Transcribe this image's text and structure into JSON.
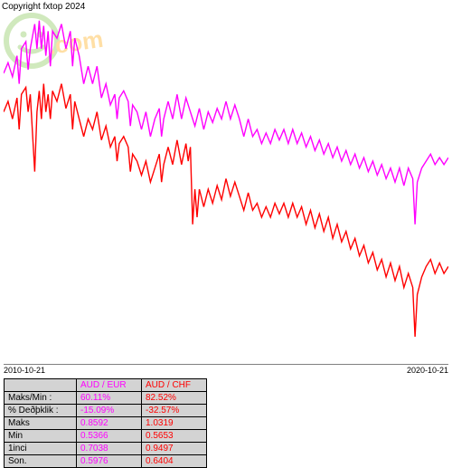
{
  "copyright": "Copyright fxtop 2024",
  "watermark": {
    "face_color": "#7bc043",
    "text": "fxtop.com",
    "text_color": "#ffa500"
  },
  "chart": {
    "type": "line",
    "background": "#ffffff",
    "xlim": [
      "2010-10-21",
      "2020-10-21"
    ],
    "series": [
      {
        "name": "AUD / EUR",
        "color": "#ff00ff",
        "width": 1.4,
        "points": [
          [
            0,
            0.17
          ],
          [
            0.01,
            0.14
          ],
          [
            0.02,
            0.18
          ],
          [
            0.03,
            0.12
          ],
          [
            0.035,
            0.2
          ],
          [
            0.04,
            0.1
          ],
          [
            0.05,
            0.08
          ],
          [
            0.055,
            0.16
          ],
          [
            0.06,
            0.1
          ],
          [
            0.07,
            0.03
          ],
          [
            0.075,
            0.1
          ],
          [
            0.08,
            0.02
          ],
          [
            0.085,
            0.1
          ],
          [
            0.09,
            0.035
          ],
          [
            0.095,
            0.12
          ],
          [
            0.1,
            0.05
          ],
          [
            0.105,
            0.15
          ],
          [
            0.11,
            0.05
          ],
          [
            0.12,
            0.07
          ],
          [
            0.13,
            0.03
          ],
          [
            0.14,
            0.1
          ],
          [
            0.15,
            0.05
          ],
          [
            0.155,
            0.15
          ],
          [
            0.16,
            0.07
          ],
          [
            0.17,
            0.12
          ],
          [
            0.18,
            0.2
          ],
          [
            0.19,
            0.15
          ],
          [
            0.2,
            0.2
          ],
          [
            0.21,
            0.15
          ],
          [
            0.22,
            0.24
          ],
          [
            0.23,
            0.2
          ],
          [
            0.24,
            0.26
          ],
          [
            0.25,
            0.23
          ],
          [
            0.255,
            0.3
          ],
          [
            0.26,
            0.24
          ],
          [
            0.27,
            0.22
          ],
          [
            0.28,
            0.25
          ],
          [
            0.285,
            0.32
          ],
          [
            0.29,
            0.26
          ],
          [
            0.3,
            0.28
          ],
          [
            0.31,
            0.33
          ],
          [
            0.32,
            0.28
          ],
          [
            0.33,
            0.35
          ],
          [
            0.34,
            0.3
          ],
          [
            0.35,
            0.27
          ],
          [
            0.355,
            0.35
          ],
          [
            0.36,
            0.3
          ],
          [
            0.37,
            0.25
          ],
          [
            0.38,
            0.3
          ],
          [
            0.39,
            0.23
          ],
          [
            0.4,
            0.3
          ],
          [
            0.41,
            0.24
          ],
          [
            0.42,
            0.28
          ],
          [
            0.43,
            0.32
          ],
          [
            0.44,
            0.27
          ],
          [
            0.45,
            0.33
          ],
          [
            0.46,
            0.28
          ],
          [
            0.47,
            0.31
          ],
          [
            0.48,
            0.27
          ],
          [
            0.49,
            0.3
          ],
          [
            0.5,
            0.25
          ],
          [
            0.51,
            0.3
          ],
          [
            0.52,
            0.26
          ],
          [
            0.53,
            0.3
          ],
          [
            0.54,
            0.35
          ],
          [
            0.55,
            0.3
          ],
          [
            0.56,
            0.35
          ],
          [
            0.57,
            0.33
          ],
          [
            0.58,
            0.37
          ],
          [
            0.59,
            0.34
          ],
          [
            0.6,
            0.37
          ],
          [
            0.61,
            0.33
          ],
          [
            0.62,
            0.36
          ],
          [
            0.63,
            0.33
          ],
          [
            0.64,
            0.37
          ],
          [
            0.65,
            0.33
          ],
          [
            0.66,
            0.37
          ],
          [
            0.67,
            0.34
          ],
          [
            0.68,
            0.38
          ],
          [
            0.69,
            0.35
          ],
          [
            0.7,
            0.39
          ],
          [
            0.71,
            0.36
          ],
          [
            0.72,
            0.4
          ],
          [
            0.73,
            0.37
          ],
          [
            0.74,
            0.41
          ],
          [
            0.75,
            0.38
          ],
          [
            0.76,
            0.42
          ],
          [
            0.77,
            0.39
          ],
          [
            0.78,
            0.43
          ],
          [
            0.79,
            0.4
          ],
          [
            0.8,
            0.44
          ],
          [
            0.81,
            0.41
          ],
          [
            0.82,
            0.45
          ],
          [
            0.83,
            0.42
          ],
          [
            0.84,
            0.46
          ],
          [
            0.85,
            0.43
          ],
          [
            0.86,
            0.47
          ],
          [
            0.87,
            0.44
          ],
          [
            0.88,
            0.48
          ],
          [
            0.89,
            0.44
          ],
          [
            0.9,
            0.49
          ],
          [
            0.91,
            0.44
          ],
          [
            0.92,
            0.47
          ],
          [
            0.925,
            0.6
          ],
          [
            0.93,
            0.48
          ],
          [
            0.94,
            0.44
          ],
          [
            0.95,
            0.42
          ],
          [
            0.96,
            0.4
          ],
          [
            0.97,
            0.43
          ],
          [
            0.98,
            0.41
          ],
          [
            0.99,
            0.43
          ],
          [
            1,
            0.41
          ]
        ]
      },
      {
        "name": "AUD / CHF",
        "color": "#ff0000",
        "width": 1.4,
        "points": [
          [
            0,
            0.28
          ],
          [
            0.01,
            0.25
          ],
          [
            0.02,
            0.3
          ],
          [
            0.03,
            0.24
          ],
          [
            0.035,
            0.33
          ],
          [
            0.04,
            0.23
          ],
          [
            0.05,
            0.21
          ],
          [
            0.055,
            0.28
          ],
          [
            0.06,
            0.23
          ],
          [
            0.07,
            0.45
          ],
          [
            0.075,
            0.28
          ],
          [
            0.08,
            0.22
          ],
          [
            0.085,
            0.3
          ],
          [
            0.09,
            0.2
          ],
          [
            0.095,
            0.28
          ],
          [
            0.1,
            0.23
          ],
          [
            0.105,
            0.3
          ],
          [
            0.11,
            0.22
          ],
          [
            0.12,
            0.25
          ],
          [
            0.13,
            0.2
          ],
          [
            0.14,
            0.27
          ],
          [
            0.15,
            0.23
          ],
          [
            0.155,
            0.33
          ],
          [
            0.16,
            0.25
          ],
          [
            0.17,
            0.3
          ],
          [
            0.18,
            0.35
          ],
          [
            0.19,
            0.3
          ],
          [
            0.2,
            0.33
          ],
          [
            0.21,
            0.28
          ],
          [
            0.22,
            0.36
          ],
          [
            0.23,
            0.32
          ],
          [
            0.24,
            0.38
          ],
          [
            0.25,
            0.35
          ],
          [
            0.255,
            0.42
          ],
          [
            0.26,
            0.37
          ],
          [
            0.27,
            0.35
          ],
          [
            0.28,
            0.38
          ],
          [
            0.285,
            0.45
          ],
          [
            0.29,
            0.4
          ],
          [
            0.3,
            0.42
          ],
          [
            0.31,
            0.46
          ],
          [
            0.32,
            0.42
          ],
          [
            0.33,
            0.48
          ],
          [
            0.34,
            0.44
          ],
          [
            0.35,
            0.4
          ],
          [
            0.355,
            0.48
          ],
          [
            0.36,
            0.43
          ],
          [
            0.37,
            0.38
          ],
          [
            0.38,
            0.43
          ],
          [
            0.39,
            0.36
          ],
          [
            0.4,
            0.43
          ],
          [
            0.41,
            0.37
          ],
          [
            0.415,
            0.42
          ],
          [
            0.42,
            0.38
          ],
          [
            0.425,
            0.6
          ],
          [
            0.43,
            0.5
          ],
          [
            0.435,
            0.58
          ],
          [
            0.44,
            0.5
          ],
          [
            0.45,
            0.55
          ],
          [
            0.46,
            0.5
          ],
          [
            0.47,
            0.54
          ],
          [
            0.48,
            0.49
          ],
          [
            0.49,
            0.53
          ],
          [
            0.5,
            0.47
          ],
          [
            0.51,
            0.52
          ],
          [
            0.52,
            0.48
          ],
          [
            0.53,
            0.52
          ],
          [
            0.54,
            0.56
          ],
          [
            0.55,
            0.51
          ],
          [
            0.56,
            0.56
          ],
          [
            0.57,
            0.54
          ],
          [
            0.58,
            0.58
          ],
          [
            0.59,
            0.55
          ],
          [
            0.6,
            0.58
          ],
          [
            0.61,
            0.54
          ],
          [
            0.62,
            0.57
          ],
          [
            0.63,
            0.54
          ],
          [
            0.64,
            0.58
          ],
          [
            0.65,
            0.54
          ],
          [
            0.66,
            0.58
          ],
          [
            0.67,
            0.55
          ],
          [
            0.68,
            0.6
          ],
          [
            0.69,
            0.56
          ],
          [
            0.7,
            0.61
          ],
          [
            0.71,
            0.57
          ],
          [
            0.72,
            0.62
          ],
          [
            0.73,
            0.58
          ],
          [
            0.74,
            0.64
          ],
          [
            0.75,
            0.6
          ],
          [
            0.76,
            0.65
          ],
          [
            0.77,
            0.62
          ],
          [
            0.78,
            0.67
          ],
          [
            0.79,
            0.64
          ],
          [
            0.8,
            0.69
          ],
          [
            0.81,
            0.66
          ],
          [
            0.82,
            0.71
          ],
          [
            0.83,
            0.68
          ],
          [
            0.84,
            0.73
          ],
          [
            0.85,
            0.7
          ],
          [
            0.86,
            0.75
          ],
          [
            0.87,
            0.71
          ],
          [
            0.88,
            0.76
          ],
          [
            0.89,
            0.72
          ],
          [
            0.9,
            0.78
          ],
          [
            0.91,
            0.74
          ],
          [
            0.92,
            0.78
          ],
          [
            0.925,
            0.92
          ],
          [
            0.93,
            0.8
          ],
          [
            0.94,
            0.75
          ],
          [
            0.95,
            0.72
          ],
          [
            0.96,
            0.7
          ],
          [
            0.97,
            0.74
          ],
          [
            0.98,
            0.71
          ],
          [
            0.99,
            0.74
          ],
          [
            1,
            0.72
          ]
        ]
      }
    ]
  },
  "x_axis": {
    "left": "2010-10-21",
    "right": "2020-10-21"
  },
  "table": {
    "header_bg": "#d3d3d3",
    "row_bg": "#d3d3d3",
    "col1_color": "#ff00ff",
    "col2_color": "#ff0000",
    "rows": [
      {
        "label": "",
        "col1": "AUD / EUR",
        "col2": "AUD / CHF"
      },
      {
        "label": "Maks/Min :",
        "col1": "60.11%",
        "col2": "82.52%"
      },
      {
        "label": "% Deðþklik :",
        "col1": "-15.09%",
        "col2": "-32.57%"
      },
      {
        "label": "Maks",
        "col1": "0.8592",
        "col2": "1.0319"
      },
      {
        "label": "Min",
        "col1": "0.5366",
        "col2": "0.5653"
      },
      {
        "label": "1inci",
        "col1": "0.7038",
        "col2": "0.9497"
      },
      {
        "label": "Son.",
        "col1": "0.5976",
        "col2": "0.6404"
      }
    ]
  }
}
